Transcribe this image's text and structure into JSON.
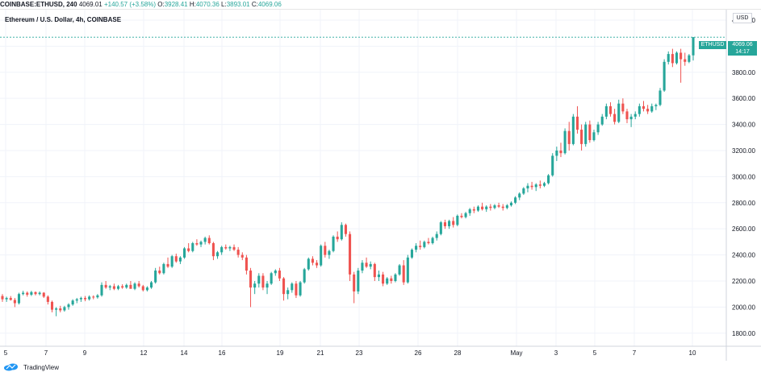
{
  "header": {
    "symbol": "COINBASE:ETHUSD, 240",
    "last": "4069.01",
    "change": "+140.57 (+3.58%)",
    "o_label": "O:",
    "o_val": "3928.41",
    "h_label": "H:",
    "h_val": "4070.36",
    "l_label": "L:",
    "l_val": "3893.01",
    "c_label": "C:",
    "c_val": "4069.06"
  },
  "legend_title": "Ethereum / U.S. Dollar, 4h, COINBASE",
  "currency": "USD",
  "price_tag": {
    "symbol": "ETHUSD",
    "value": "4069.06",
    "countdown": "14:17"
  },
  "brand": "TradingView",
  "colors": {
    "up": "#26a69a",
    "down": "#ef5350",
    "grid": "#f0f3fa"
  },
  "chart_data": {
    "type": "candlestick",
    "title": "Ethereum / U.S. Dollar, 4h, COINBASE",
    "y_ticks": [
      1800,
      2000,
      2200,
      2400,
      2600,
      2800,
      3000,
      3200,
      3400,
      3600,
      3800,
      4000,
      4200
    ],
    "y_tick_labels": [
      "1800.00",
      "2000.00",
      "2200.00",
      "2400.00",
      "2600.00",
      "2800.00",
      "3000.00",
      "3200.00",
      "3400.00",
      "3600.00",
      "3800.00",
      "4000.00",
      "4200.00"
    ],
    "x_tick_labels": [
      "5",
      "7",
      "9",
      "12",
      "14",
      "16",
      "19",
      "21",
      "23",
      "26",
      "28",
      "May",
      "3",
      "5",
      "7",
      "10"
    ],
    "ylim": [
      1700,
      4280
    ],
    "current_price": 4069.06,
    "grid": true,
    "candles": [
      [
        2085,
        2100,
        2040,
        2060
      ],
      [
        2060,
        2080,
        2040,
        2070
      ],
      [
        2070,
        2085,
        2050,
        2055
      ],
      [
        2055,
        2070,
        2000,
        2030
      ],
      [
        2030,
        2110,
        2020,
        2100
      ],
      [
        2100,
        2125,
        2090,
        2110
      ],
      [
        2110,
        2120,
        2080,
        2095
      ],
      [
        2095,
        2125,
        2085,
        2115
      ],
      [
        2115,
        2120,
        2090,
        2100
      ],
      [
        2100,
        2120,
        2090,
        2110
      ],
      [
        2110,
        2115,
        2070,
        2080
      ],
      [
        2080,
        2090,
        2020,
        2040
      ],
      [
        2040,
        2050,
        1960,
        1980
      ],
      [
        1980,
        2000,
        1930,
        1990
      ],
      [
        1990,
        2010,
        1960,
        1975
      ],
      [
        1975,
        2010,
        1965,
        2000
      ],
      [
        2000,
        2030,
        1980,
        2020
      ],
      [
        2020,
        2060,
        2010,
        2050
      ],
      [
        2050,
        2070,
        2030,
        2060
      ],
      [
        2060,
        2080,
        2040,
        2070
      ],
      [
        2070,
        2085,
        2045,
        2060
      ],
      [
        2060,
        2090,
        2050,
        2080
      ],
      [
        2080,
        2090,
        2060,
        2075
      ],
      [
        2075,
        2100,
        2065,
        2090
      ],
      [
        2090,
        2190,
        2080,
        2170
      ],
      [
        2170,
        2200,
        2140,
        2150
      ],
      [
        2150,
        2170,
        2130,
        2160
      ],
      [
        2160,
        2180,
        2130,
        2140
      ],
      [
        2140,
        2170,
        2130,
        2160
      ],
      [
        2160,
        2175,
        2140,
        2150
      ],
      [
        2150,
        2180,
        2140,
        2170
      ],
      [
        2170,
        2200,
        2150,
        2140
      ],
      [
        2140,
        2190,
        2130,
        2180
      ],
      [
        2180,
        2200,
        2150,
        2160
      ],
      [
        2160,
        2170,
        2120,
        2130
      ],
      [
        2130,
        2160,
        2120,
        2150
      ],
      [
        2150,
        2200,
        2140,
        2190
      ],
      [
        2190,
        2300,
        2180,
        2280
      ],
      [
        2280,
        2310,
        2250,
        2260
      ],
      [
        2260,
        2340,
        2250,
        2330
      ],
      [
        2330,
        2380,
        2300,
        2310
      ],
      [
        2310,
        2400,
        2300,
        2390
      ],
      [
        2390,
        2410,
        2340,
        2350
      ],
      [
        2350,
        2390,
        2330,
        2380
      ],
      [
        2380,
        2460,
        2370,
        2450
      ],
      [
        2450,
        2490,
        2420,
        2430
      ],
      [
        2430,
        2500,
        2420,
        2490
      ],
      [
        2490,
        2520,
        2470,
        2480
      ],
      [
        2480,
        2510,
        2460,
        2500
      ],
      [
        2500,
        2540,
        2480,
        2530
      ],
      [
        2530,
        2550,
        2480,
        2490
      ],
      [
        2490,
        2500,
        2360,
        2390
      ],
      [
        2390,
        2430,
        2370,
        2420
      ],
      [
        2420,
        2470,
        2400,
        2460
      ],
      [
        2460,
        2480,
        2440,
        2450
      ],
      [
        2450,
        2470,
        2430,
        2460
      ],
      [
        2460,
        2480,
        2430,
        2440
      ],
      [
        2440,
        2460,
        2380,
        2400
      ],
      [
        2400,
        2420,
        2360,
        2380
      ],
      [
        2380,
        2400,
        2250,
        2280
      ],
      [
        2280,
        2300,
        2000,
        2150
      ],
      [
        2150,
        2200,
        2100,
        2180
      ],
      [
        2180,
        2260,
        2150,
        2240
      ],
      [
        2240,
        2260,
        2130,
        2150
      ],
      [
        2150,
        2200,
        2100,
        2180
      ],
      [
        2180,
        2270,
        2170,
        2260
      ],
      [
        2260,
        2290,
        2240,
        2280
      ],
      [
        2280,
        2300,
        2200,
        2220
      ],
      [
        2220,
        2230,
        2050,
        2100
      ],
      [
        2100,
        2150,
        2060,
        2130
      ],
      [
        2130,
        2190,
        2110,
        2180
      ],
      [
        2180,
        2200,
        2070,
        2090
      ],
      [
        2090,
        2200,
        2080,
        2190
      ],
      [
        2190,
        2300,
        2180,
        2290
      ],
      [
        2290,
        2380,
        2280,
        2370
      ],
      [
        2370,
        2390,
        2320,
        2340
      ],
      [
        2340,
        2360,
        2300,
        2320
      ],
      [
        2320,
        2480,
        2310,
        2470
      ],
      [
        2470,
        2500,
        2380,
        2400
      ],
      [
        2400,
        2440,
        2370,
        2430
      ],
      [
        2430,
        2550,
        2420,
        2540
      ],
      [
        2540,
        2580,
        2500,
        2520
      ],
      [
        2520,
        2650,
        2510,
        2630
      ],
      [
        2630,
        2640,
        2540,
        2560
      ],
      [
        2560,
        2580,
        2200,
        2250
      ],
      [
        2250,
        2270,
        2030,
        2120
      ],
      [
        2120,
        2300,
        2100,
        2280
      ],
      [
        2280,
        2360,
        2260,
        2340
      ],
      [
        2340,
        2380,
        2300,
        2310
      ],
      [
        2310,
        2350,
        2290,
        2330
      ],
      [
        2330,
        2340,
        2200,
        2230
      ],
      [
        2230,
        2280,
        2200,
        2250
      ],
      [
        2250,
        2270,
        2160,
        2180
      ],
      [
        2180,
        2230,
        2170,
        2220
      ],
      [
        2220,
        2240,
        2180,
        2200
      ],
      [
        2200,
        2260,
        2190,
        2250
      ],
      [
        2250,
        2330,
        2240,
        2320
      ],
      [
        2320,
        2360,
        2170,
        2190
      ],
      [
        2190,
        2400,
        2180,
        2380
      ],
      [
        2380,
        2450,
        2370,
        2440
      ],
      [
        2440,
        2490,
        2420,
        2470
      ],
      [
        2470,
        2510,
        2440,
        2460
      ],
      [
        2460,
        2510,
        2450,
        2500
      ],
      [
        2500,
        2530,
        2480,
        2490
      ],
      [
        2490,
        2540,
        2480,
        2530
      ],
      [
        2530,
        2580,
        2510,
        2560
      ],
      [
        2560,
        2660,
        2550,
        2650
      ],
      [
        2650,
        2670,
        2600,
        2620
      ],
      [
        2620,
        2670,
        2600,
        2660
      ],
      [
        2660,
        2690,
        2610,
        2630
      ],
      [
        2630,
        2710,
        2620,
        2700
      ],
      [
        2700,
        2720,
        2680,
        2690
      ],
      [
        2690,
        2730,
        2680,
        2720
      ],
      [
        2720,
        2760,
        2700,
        2750
      ],
      [
        2750,
        2770,
        2720,
        2740
      ],
      [
        2740,
        2780,
        2730,
        2770
      ],
      [
        2770,
        2800,
        2740,
        2750
      ],
      [
        2750,
        2780,
        2730,
        2770
      ],
      [
        2770,
        2790,
        2740,
        2760
      ],
      [
        2760,
        2790,
        2750,
        2780
      ],
      [
        2780,
        2800,
        2760,
        2770
      ],
      [
        2770,
        2790,
        2740,
        2760
      ],
      [
        2760,
        2790,
        2750,
        2780
      ],
      [
        2780,
        2810,
        2770,
        2800
      ],
      [
        2800,
        2850,
        2790,
        2840
      ],
      [
        2840,
        2880,
        2820,
        2870
      ],
      [
        2870,
        2920,
        2860,
        2910
      ],
      [
        2910,
        2950,
        2880,
        2930
      ],
      [
        2930,
        2960,
        2900,
        2920
      ],
      [
        2920,
        2950,
        2890,
        2940
      ],
      [
        2940,
        2970,
        2910,
        2930
      ],
      [
        2930,
        2960,
        2920,
        2950
      ],
      [
        2950,
        3020,
        2940,
        3010
      ],
      [
        3010,
        3180,
        3000,
        3160
      ],
      [
        3160,
        3230,
        3120,
        3200
      ],
      [
        3200,
        3260,
        3150,
        3180
      ],
      [
        3180,
        3370,
        3170,
        3350
      ],
      [
        3350,
        3420,
        3200,
        3250
      ],
      [
        3250,
        3480,
        3240,
        3460
      ],
      [
        3460,
        3540,
        3330,
        3360
      ],
      [
        3360,
        3400,
        3200,
        3250
      ],
      [
        3250,
        3420,
        3230,
        3400
      ],
      [
        3400,
        3430,
        3260,
        3280
      ],
      [
        3280,
        3360,
        3270,
        3340
      ],
      [
        3340,
        3420,
        3320,
        3400
      ],
      [
        3400,
        3480,
        3390,
        3460
      ],
      [
        3460,
        3560,
        3440,
        3540
      ],
      [
        3540,
        3570,
        3460,
        3480
      ],
      [
        3480,
        3520,
        3400,
        3420
      ],
      [
        3420,
        3590,
        3410,
        3560
      ],
      [
        3560,
        3600,
        3480,
        3500
      ],
      [
        3500,
        3520,
        3410,
        3440
      ],
      [
        3440,
        3480,
        3380,
        3460
      ],
      [
        3460,
        3500,
        3440,
        3480
      ],
      [
        3480,
        3560,
        3460,
        3540
      ],
      [
        3540,
        3580,
        3500,
        3520
      ],
      [
        3520,
        3550,
        3480,
        3500
      ],
      [
        3500,
        3560,
        3490,
        3540
      ],
      [
        3540,
        3560,
        3510,
        3550
      ],
      [
        3550,
        3680,
        3540,
        3660
      ],
      [
        3660,
        3900,
        3650,
        3880
      ],
      [
        3880,
        3960,
        3860,
        3940
      ],
      [
        3940,
        3980,
        3840,
        3870
      ],
      [
        3870,
        3960,
        3860,
        3950
      ],
      [
        3950,
        3980,
        3720,
        3900
      ],
      [
        3900,
        3950,
        3850,
        3880
      ],
      [
        3880,
        3940,
        3870,
        3930
      ],
      [
        3930,
        4070,
        3890,
        4069
      ]
    ]
  }
}
